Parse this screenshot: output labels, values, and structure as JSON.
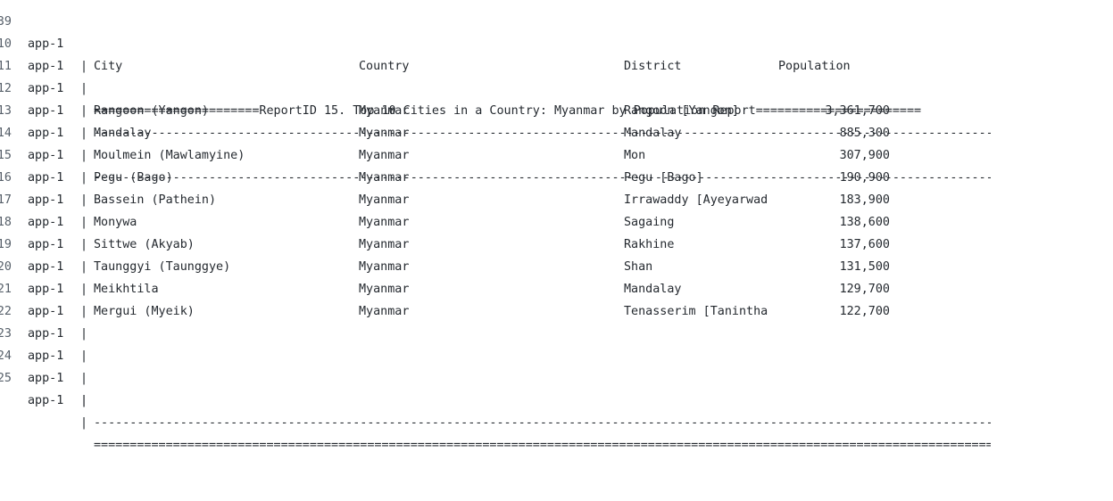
{
  "service": "app-1",
  "separator": "|",
  "title_line": "=======================ReportID 15. Top 10 Cities in a Country: Myanmar by Population Report=======================",
  "dash_rule": "-------------------------------------------------------------------------------------------------------------------------------------",
  "equals_rule": "=====================================================================================================================================",
  "headers": {
    "city": "City",
    "country": "Country",
    "district": "District",
    "population": "Population"
  },
  "line_numbers": {
    "top": "39",
    "title": "10",
    "rule1": "11",
    "header": "12",
    "rule2": "13",
    "rule3": "24",
    "final": "25"
  },
  "rows": [
    {
      "ln": "14",
      "city": "Rangoon (Yangon)",
      "country": "Myanmar",
      "district": "Rangoon [Yangon]",
      "population": "3,361,700"
    },
    {
      "ln": "15",
      "city": "Mandalay",
      "country": "Myanmar",
      "district": "Mandalay",
      "population": "885,300"
    },
    {
      "ln": "16",
      "city": "Moulmein (Mawlamyine)",
      "country": "Myanmar",
      "district": "Mon",
      "population": "307,900"
    },
    {
      "ln": "17",
      "city": "Pegu (Bago)",
      "country": "Myanmar",
      "district": "Pegu [Bago]",
      "population": "190,900"
    },
    {
      "ln": "18",
      "city": "Bassein (Pathein)",
      "country": "Myanmar",
      "district": "Irrawaddy [Ayeyarwad",
      "population": "183,900"
    },
    {
      "ln": "19",
      "city": "Monywa",
      "country": "Myanmar",
      "district": "Sagaing",
      "population": "138,600"
    },
    {
      "ln": "20",
      "city": "Sittwe (Akyab)",
      "country": "Myanmar",
      "district": "Rakhine",
      "population": "137,600"
    },
    {
      "ln": "21",
      "city": "Taunggyi (Taunggye)",
      "country": "Myanmar",
      "district": "Shan",
      "population": "131,500"
    },
    {
      "ln": "22",
      "city": "Meikhtila",
      "country": "Myanmar",
      "district": "Mandalay",
      "population": "129,700"
    },
    {
      "ln": "23",
      "city": "Mergui (Myeik)",
      "country": "Myanmar",
      "district": "Tenasserim [Tanintha",
      "population": "122,700"
    }
  ]
}
